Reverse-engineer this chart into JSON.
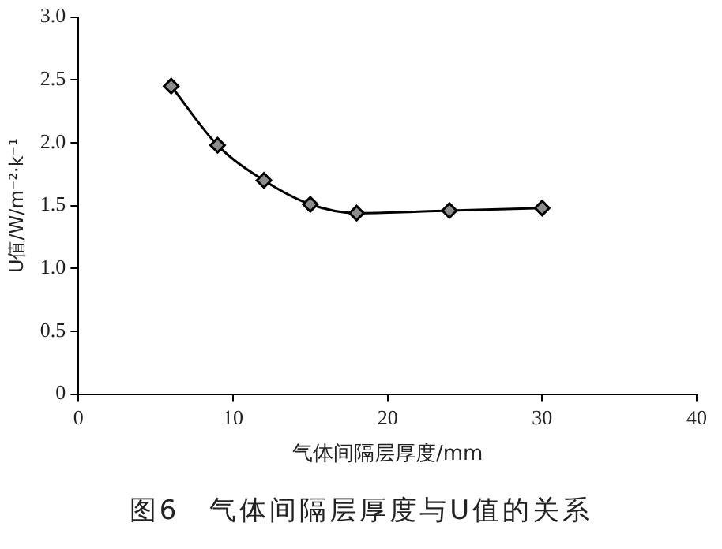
{
  "chart_data": {
    "type": "line",
    "xlabel": "气体间隔层厚度/mm",
    "ylabel": "U值/W/m⁻²·k⁻¹",
    "annotations": [
      "图6　气体间隔层厚度与U值的关系"
    ],
    "x": [
      6,
      9,
      12,
      15,
      18,
      24,
      30
    ],
    "series": [
      {
        "color": "#000000",
        "values": [
          2.45,
          1.98,
          1.7,
          1.51,
          1.44,
          1.46,
          1.48
        ]
      }
    ],
    "xlim": [
      0,
      40
    ],
    "xticks": [
      0,
      10,
      20,
      30,
      40
    ],
    "ylim": [
      0,
      3
    ],
    "yticks": [
      0,
      0.5,
      {
        "value": 1,
        "label": "1.0"
      },
      1.5,
      {
        "value": 2,
        "label": "2.0"
      },
      2.5,
      {
        "value": 3,
        "label": "3.0"
      }
    ],
    "grid": false,
    "legend": false,
    "marker": "diamond",
    "line_style": "solid"
  }
}
